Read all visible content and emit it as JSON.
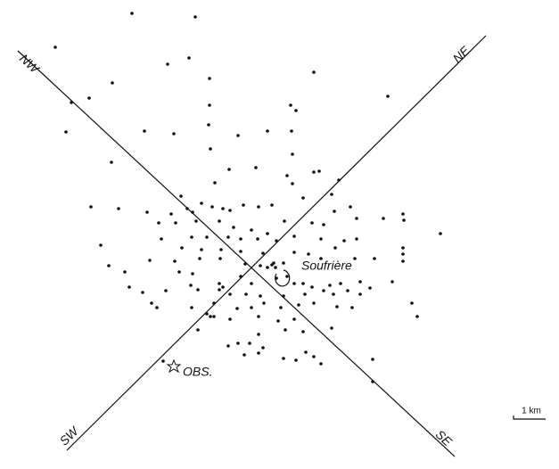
{
  "labels": {
    "nw": "NW",
    "ne": "NE",
    "sw": "SW",
    "se": "SE",
    "volcano": "Soufrière",
    "station": "OBS.",
    "scale": "1 km"
  }
}
